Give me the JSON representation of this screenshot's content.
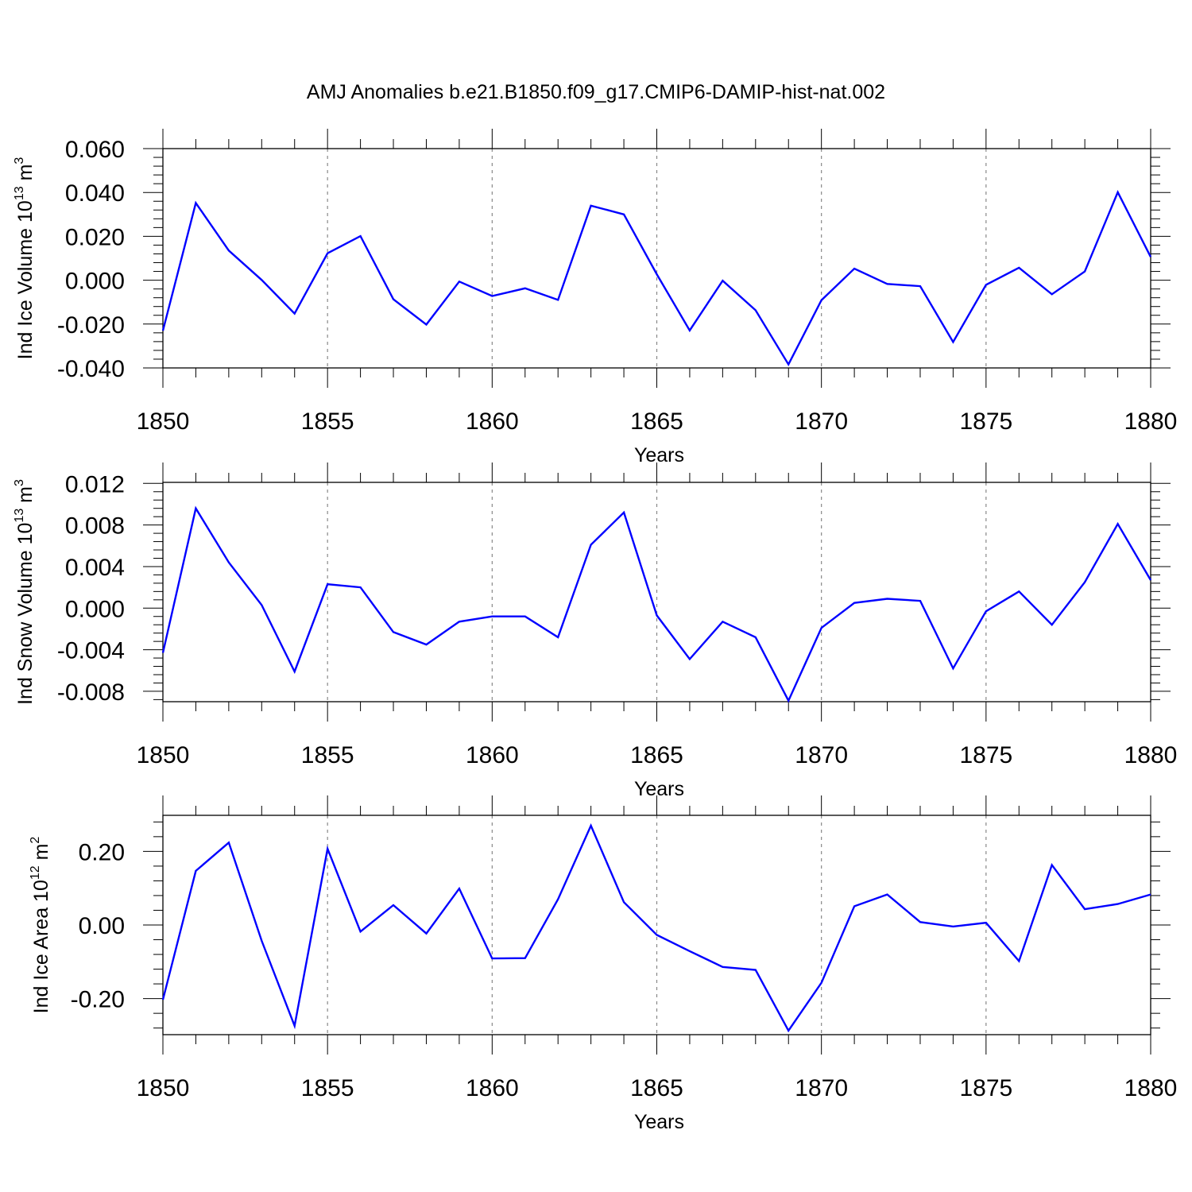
{
  "title": "AMJ Anomalies b.e21.B1850.f09_g17.CMIP6-DAMIP-hist-nat.002",
  "chart_data": [
    {
      "type": "line",
      "title": "",
      "ylabel": "Ind Ice Volume 10",
      "ylabel_exp": "13",
      "ylabel_unit": " m",
      "ylabel_unit_exp": "3",
      "xlabel": "Years",
      "xlim": [
        1850,
        1880
      ],
      "ylim": [
        -0.04,
        0.06
      ],
      "yticks": [
        "0.060",
        "0.040",
        "0.020",
        "0.000",
        "-0.020",
        "-0.040"
      ],
      "ytick_values": [
        0.06,
        0.04,
        0.02,
        0.0,
        -0.02,
        -0.04
      ],
      "xticks": [
        "1850",
        "1855",
        "1860",
        "1865",
        "1870",
        "1875",
        "1880"
      ],
      "line_color": "#0000ff",
      "series": [
        {
          "name": "Ind Ice Volume",
          "x": [
            1850,
            1851,
            1852,
            1853,
            1854,
            1855,
            1856,
            1857,
            1858,
            1859,
            1860,
            1861,
            1862,
            1863,
            1864,
            1865,
            1866,
            1867,
            1868,
            1869,
            1870,
            1871,
            1872,
            1873,
            1874,
            1875,
            1876,
            1877,
            1878,
            1879,
            1880
          ],
          "values": [
            -0.023,
            0.0352,
            0.0135,
            0.0001,
            -0.0152,
            0.0123,
            0.0201,
            -0.0087,
            -0.0202,
            -0.0006,
            -0.0072,
            -0.0037,
            -0.009,
            0.034,
            0.03,
            0.0027,
            -0.0229,
            -0.0002,
            -0.0137,
            -0.0384,
            -0.0091,
            0.0053,
            -0.0017,
            -0.0027,
            -0.0282,
            -0.0021,
            0.0057,
            -0.0064,
            0.004,
            0.0401,
            0.0106
          ]
        }
      ]
    },
    {
      "type": "line",
      "title": "",
      "ylabel": "Ind Snow Volume 10",
      "ylabel_exp": "13",
      "ylabel_unit": " m",
      "ylabel_unit_exp": "3",
      "xlabel": "Years",
      "xlim": [
        1850,
        1880
      ],
      "ylim": [
        -0.009,
        0.0121
      ],
      "yticks": [
        "0.012",
        "0.008",
        "0.004",
        "0.000",
        "-0.004",
        "-0.008"
      ],
      "ytick_values": [
        0.012,
        0.008,
        0.004,
        0.0,
        -0.004,
        -0.008
      ],
      "xticks": [
        "1850",
        "1855",
        "1860",
        "1865",
        "1870",
        "1875",
        "1880"
      ],
      "line_color": "#0000ff",
      "series": [
        {
          "name": "Ind Snow Volume",
          "x": [
            1850,
            1851,
            1852,
            1853,
            1854,
            1855,
            1856,
            1857,
            1858,
            1859,
            1860,
            1861,
            1862,
            1863,
            1864,
            1865,
            1866,
            1867,
            1868,
            1869,
            1870,
            1871,
            1872,
            1873,
            1874,
            1875,
            1876,
            1877,
            1878,
            1879,
            1880
          ],
          "values": [
            -0.0043,
            0.0096,
            0.0044,
            0.0003,
            -0.0061,
            0.0023,
            0.002,
            -0.0023,
            -0.0035,
            -0.0013,
            -0.0008,
            -0.0008,
            -0.0028,
            0.0061,
            0.0092,
            -0.0007,
            -0.0049,
            -0.0013,
            -0.0028,
            -0.0089,
            -0.0019,
            0.0005,
            0.0009,
            0.0007,
            -0.0058,
            -0.0003,
            0.0016,
            -0.0016,
            0.0025,
            0.0081,
            0.0027
          ]
        }
      ]
    },
    {
      "type": "line",
      "title": "",
      "ylabel": "Ind Ice Area 10",
      "ylabel_exp": "12",
      "ylabel_unit": " m",
      "ylabel_unit_exp": "2",
      "xlabel": "Years",
      "xlim": [
        1850,
        1880
      ],
      "ylim": [
        -0.298,
        0.298
      ],
      "yticks": [
        "0.20",
        "0.00",
        "-0.20"
      ],
      "ytick_values": [
        0.2,
        0.0,
        -0.2
      ],
      "xticks": [
        "1850",
        "1855",
        "1860",
        "1865",
        "1870",
        "1875",
        "1880"
      ],
      "line_color": "#0000ff",
      "series": [
        {
          "name": "Ind Ice Area",
          "x": [
            1850,
            1851,
            1852,
            1853,
            1854,
            1855,
            1856,
            1857,
            1858,
            1859,
            1860,
            1861,
            1862,
            1863,
            1864,
            1865,
            1866,
            1867,
            1868,
            1869,
            1870,
            1871,
            1872,
            1873,
            1874,
            1875,
            1876,
            1877,
            1878,
            1879,
            1880
          ],
          "values": [
            -0.203,
            0.147,
            0.224,
            -0.043,
            -0.274,
            0.207,
            -0.018,
            0.054,
            -0.023,
            0.099,
            -0.091,
            -0.09,
            0.07,
            0.27,
            0.062,
            -0.027,
            -0.071,
            -0.114,
            -0.122,
            -0.287,
            -0.157,
            0.051,
            0.083,
            0.008,
            -0.004,
            0.006,
            -0.098,
            0.163,
            0.043,
            0.057,
            0.083
          ]
        }
      ]
    }
  ]
}
